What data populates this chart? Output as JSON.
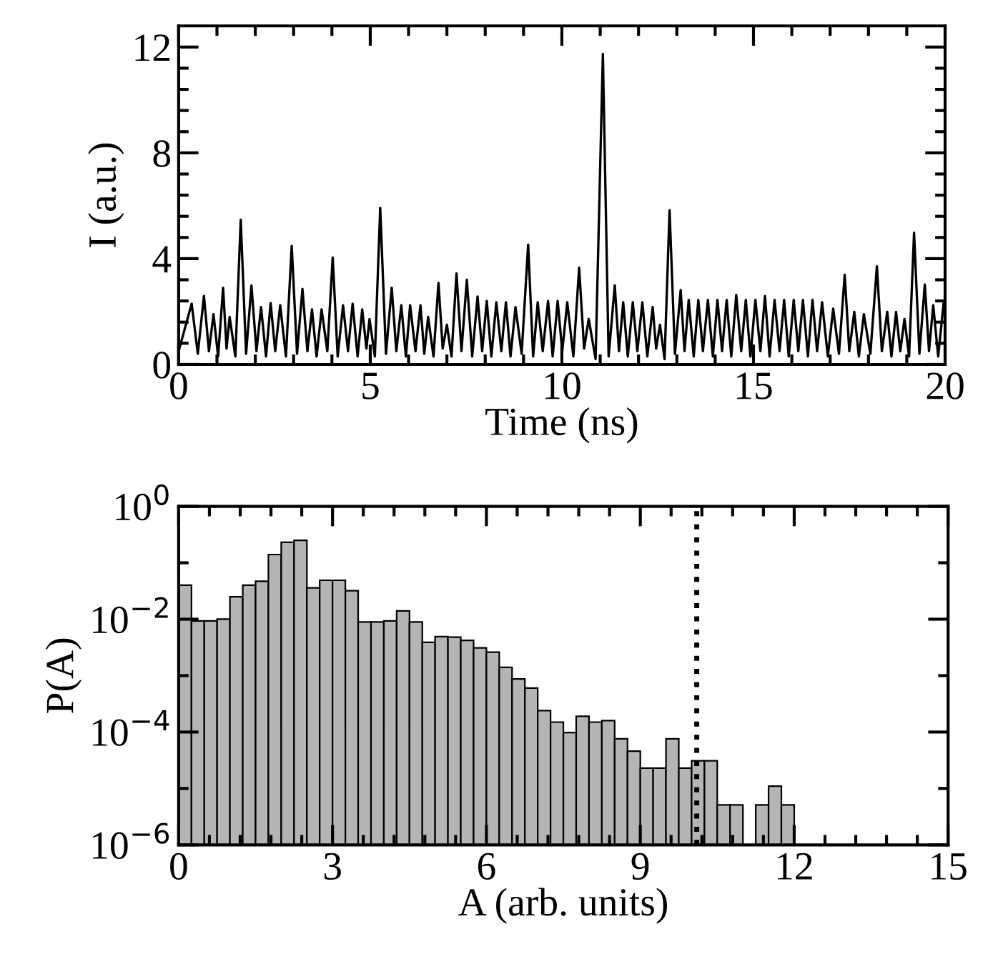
{
  "chart_data": [
    {
      "type": "line",
      "xlabel": "Time (ns)",
      "ylabel": "I (a.u.)",
      "xlim": [
        0,
        20
      ],
      "ylim": [
        0,
        12.8
      ],
      "xticks": [
        0,
        {
          "value": 1,
          "label": null
        },
        {
          "value": 2,
          "label": null
        },
        {
          "value": 3,
          "label": null
        },
        {
          "value": 4,
          "label": null
        },
        5,
        {
          "value": 6,
          "label": null
        },
        {
          "value": 7,
          "label": null
        },
        {
          "value": 8,
          "label": null
        },
        {
          "value": 9,
          "label": null
        },
        10,
        {
          "value": 11,
          "label": null
        },
        {
          "value": 12,
          "label": null
        },
        {
          "value": 13,
          "label": null
        },
        {
          "value": 14,
          "label": null
        },
        15,
        {
          "value": 16,
          "label": null
        },
        {
          "value": 17,
          "label": null
        },
        {
          "value": 18,
          "label": null
        },
        {
          "value": 19,
          "label": null
        },
        20
      ],
      "yticks": [
        0,
        {
          "value": 0.8,
          "label": null
        },
        {
          "value": 1.6,
          "label": null
        },
        {
          "value": 2.4,
          "label": null
        },
        {
          "value": 3.2,
          "label": null
        },
        4,
        {
          "value": 4.8,
          "label": null
        },
        {
          "value": 5.6,
          "label": null
        },
        {
          "value": 6.4,
          "label": null
        },
        {
          "value": 7.2,
          "label": null
        },
        8,
        {
          "value": 8.8,
          "label": null
        },
        {
          "value": 9.6,
          "label": null
        },
        {
          "value": 10.4,
          "label": null
        },
        {
          "value": 11.2,
          "label": null
        },
        12
      ],
      "legend": false,
      "series": [
        {
          "color": "#000000",
          "x": [
            0,
            0.34,
            0.5,
            0.66,
            0.79,
            0.91,
            1.03,
            1.16,
            1.25,
            1.33,
            1.48,
            1.62,
            1.76,
            1.9,
            2.03,
            2.15,
            2.28,
            2.4,
            2.52,
            2.65,
            2.8,
            2.95,
            3.09,
            3.23,
            3.36,
            3.48,
            3.6,
            3.73,
            3.88,
            4.02,
            4.15,
            4.29,
            4.42,
            4.54,
            4.67,
            4.79,
            4.9,
            4.98,
            5.12,
            5.26,
            5.41,
            5.56,
            5.68,
            5.81,
            5.93,
            6.04,
            6.18,
            6.31,
            6.41,
            6.51,
            6.65,
            6.78,
            6.89,
            7.0,
            7.12,
            7.25,
            7.38,
            7.52,
            7.66,
            7.8,
            7.92,
            8.04,
            8.16,
            8.29,
            8.42,
            8.54,
            8.66,
            8.79,
            8.95,
            9.12,
            9.25,
            9.37,
            9.5,
            9.64,
            9.76,
            9.89,
            10.01,
            10.14,
            10.3,
            10.45,
            10.58,
            10.7,
            10.88,
            11.07,
            11.22,
            11.38,
            11.49,
            11.6,
            11.72,
            11.85,
            11.97,
            12.1,
            12.23,
            12.37,
            12.46,
            12.56,
            12.68,
            12.81,
            12.95,
            13.1,
            13.2,
            13.31,
            13.44,
            13.56,
            13.68,
            13.81,
            13.94,
            14.06,
            14.18,
            14.3,
            14.42,
            14.55,
            14.68,
            14.8,
            14.92,
            15.05,
            15.18,
            15.3,
            15.42,
            15.55,
            15.68,
            15.8,
            15.92,
            16.05,
            16.17,
            16.29,
            16.42,
            16.54,
            16.66,
            16.79,
            16.94,
            17.08,
            17.23,
            17.38,
            17.5,
            17.63,
            17.75,
            17.88,
            18.05,
            18.22,
            18.35,
            18.49,
            18.6,
            18.72,
            18.83,
            18.94,
            19.06,
            19.19,
            19.33,
            19.47,
            19.58,
            19.69,
            19.82,
            19.96
          ],
          "values": [
            0.5,
            2.3,
            0.4,
            2.59,
            0.5,
            1.9,
            0.3,
            2.9,
            0.6,
            1.8,
            0.3,
            5.47,
            0.4,
            2.99,
            0.5,
            2.17,
            0.3,
            2.32,
            0.5,
            2.24,
            0.3,
            4.48,
            0.4,
            2.86,
            0.5,
            2.08,
            0.3,
            2.08,
            0.5,
            4.04,
            0.3,
            2.24,
            0.5,
            2.3,
            0.3,
            2.08,
            0.6,
            1.72,
            0.3,
            5.92,
            0.4,
            2.9,
            0.5,
            2.24,
            0.3,
            2.24,
            0.5,
            2.24,
            0.4,
            1.8,
            0.3,
            3.08,
            0.6,
            1.5,
            0.3,
            3.44,
            0.5,
            3.2,
            0.3,
            2.57,
            0.5,
            2.4,
            0.3,
            2.35,
            0.5,
            2.35,
            0.3,
            2.17,
            0.4,
            4.53,
            0.3,
            2.35,
            0.5,
            2.4,
            0.3,
            2.4,
            0.5,
            2.35,
            0.3,
            3.66,
            0.6,
            1.72,
            0.2,
            11.74,
            0.3,
            2.99,
            0.5,
            2.35,
            0.3,
            2.35,
            0.5,
            2.35,
            0.3,
            2.17,
            0.6,
            1.5,
            0.2,
            5.83,
            0.4,
            2.81,
            0.5,
            2.44,
            0.3,
            2.44,
            0.5,
            2.44,
            0.3,
            2.44,
            0.5,
            2.44,
            0.3,
            2.63,
            0.5,
            2.44,
            0.3,
            2.44,
            0.5,
            2.59,
            0.3,
            2.44,
            0.5,
            2.44,
            0.3,
            2.44,
            0.5,
            2.44,
            0.3,
            2.44,
            0.5,
            2.35,
            0.3,
            2.11,
            0.4,
            3.39,
            0.5,
            1.99,
            0.3,
            1.9,
            0.4,
            3.71,
            0.5,
            1.99,
            0.3,
            1.99,
            0.5,
            1.72,
            0.3,
            4.98,
            0.4,
            3.02,
            0.5,
            2.24,
            0.3,
            2.3
          ]
        }
      ]
    },
    {
      "type": "histogram",
      "xlabel": "A (arb. units)",
      "ylabel": "P(A)",
      "log": "y",
      "xlim": [
        0,
        15
      ],
      "ylim": [
        1e-06,
        1
      ],
      "xticks": [
        0,
        {
          "value": 0.6,
          "label": null
        },
        {
          "value": 1.2,
          "label": null
        },
        {
          "value": 1.8,
          "label": null
        },
        {
          "value": 2.4,
          "label": null
        },
        3,
        {
          "value": 3.6,
          "label": null
        },
        {
          "value": 4.2,
          "label": null
        },
        {
          "value": 4.8,
          "label": null
        },
        {
          "value": 5.4,
          "label": null
        },
        6,
        {
          "value": 6.6,
          "label": null
        },
        {
          "value": 7.2,
          "label": null
        },
        {
          "value": 7.8,
          "label": null
        },
        {
          "value": 8.4,
          "label": null
        },
        9,
        {
          "value": 9.6,
          "label": null
        },
        {
          "value": 10.2,
          "label": null
        },
        {
          "value": 10.8,
          "label": null
        },
        {
          "value": 11.4,
          "label": null
        },
        12,
        {
          "value": 12.6,
          "label": null
        },
        {
          "value": 13.2,
          "label": null
        },
        {
          "value": 13.8,
          "label": null
        },
        {
          "value": 14.4,
          "label": null
        },
        15
      ],
      "yticks": [
        {
          "value": 1e-06,
          "label": "10$^{−6}$"
        },
        {
          "value": 1e-05,
          "label": null
        },
        {
          "value": 0.0001,
          "label": "10$^{−4}$"
        },
        {
          "value": 0.001,
          "label": null
        },
        {
          "value": 0.01,
          "label": "10$^{−2}$"
        },
        {
          "value": 0.1,
          "label": null
        },
        {
          "value": 1,
          "label": "10$^{0}$"
        }
      ],
      "color": "#b4b4b4",
      "bins": [
        0,
        0.25,
        0.5,
        0.75,
        1,
        1.25,
        1.5,
        1.75,
        2,
        2.25,
        2.5,
        2.75,
        3,
        3.25,
        3.5,
        3.75,
        4,
        4.25,
        4.5,
        4.75,
        5,
        5.25,
        5.5,
        5.75,
        6,
        6.25,
        6.5,
        6.75,
        7,
        7.25,
        7.5,
        7.75,
        8,
        8.25,
        8.5,
        8.75,
        9,
        9.25,
        9.5,
        9.75,
        10,
        10.25,
        10.5,
        10.75,
        11,
        11.25,
        11.5,
        11.75,
        12
      ],
      "values": [
        0.04,
        0.0093,
        0.0093,
        0.01,
        0.025,
        0.04,
        0.047,
        0.14,
        0.23,
        0.25,
        0.036,
        0.049,
        0.049,
        0.032,
        0.0089,
        0.0089,
        0.0093,
        0.014,
        0.0089,
        0.0039,
        0.0049,
        0.0048,
        0.0042,
        0.0031,
        0.0026,
        0.0014,
        0.00087,
        0.0006,
        0.00024,
        0.00015,
        9.8e-05,
        0.00019,
        0.00015,
        0.00016,
        7.6e-05,
        4.6e-05,
        2.3e-05,
        2.3e-05,
        7.6e-05,
        2.3e-05,
        3.1e-05,
        3.1e-05,
        5.1e-06,
        5.1e-06,
        null,
        5.1e-06,
        1.1e-05,
        5.1e-06
      ],
      "ref_lines": [
        {
          "axis": "x",
          "value": 10.1,
          "color": "#000000",
          "line_style": "dotted"
        }
      ]
    }
  ]
}
